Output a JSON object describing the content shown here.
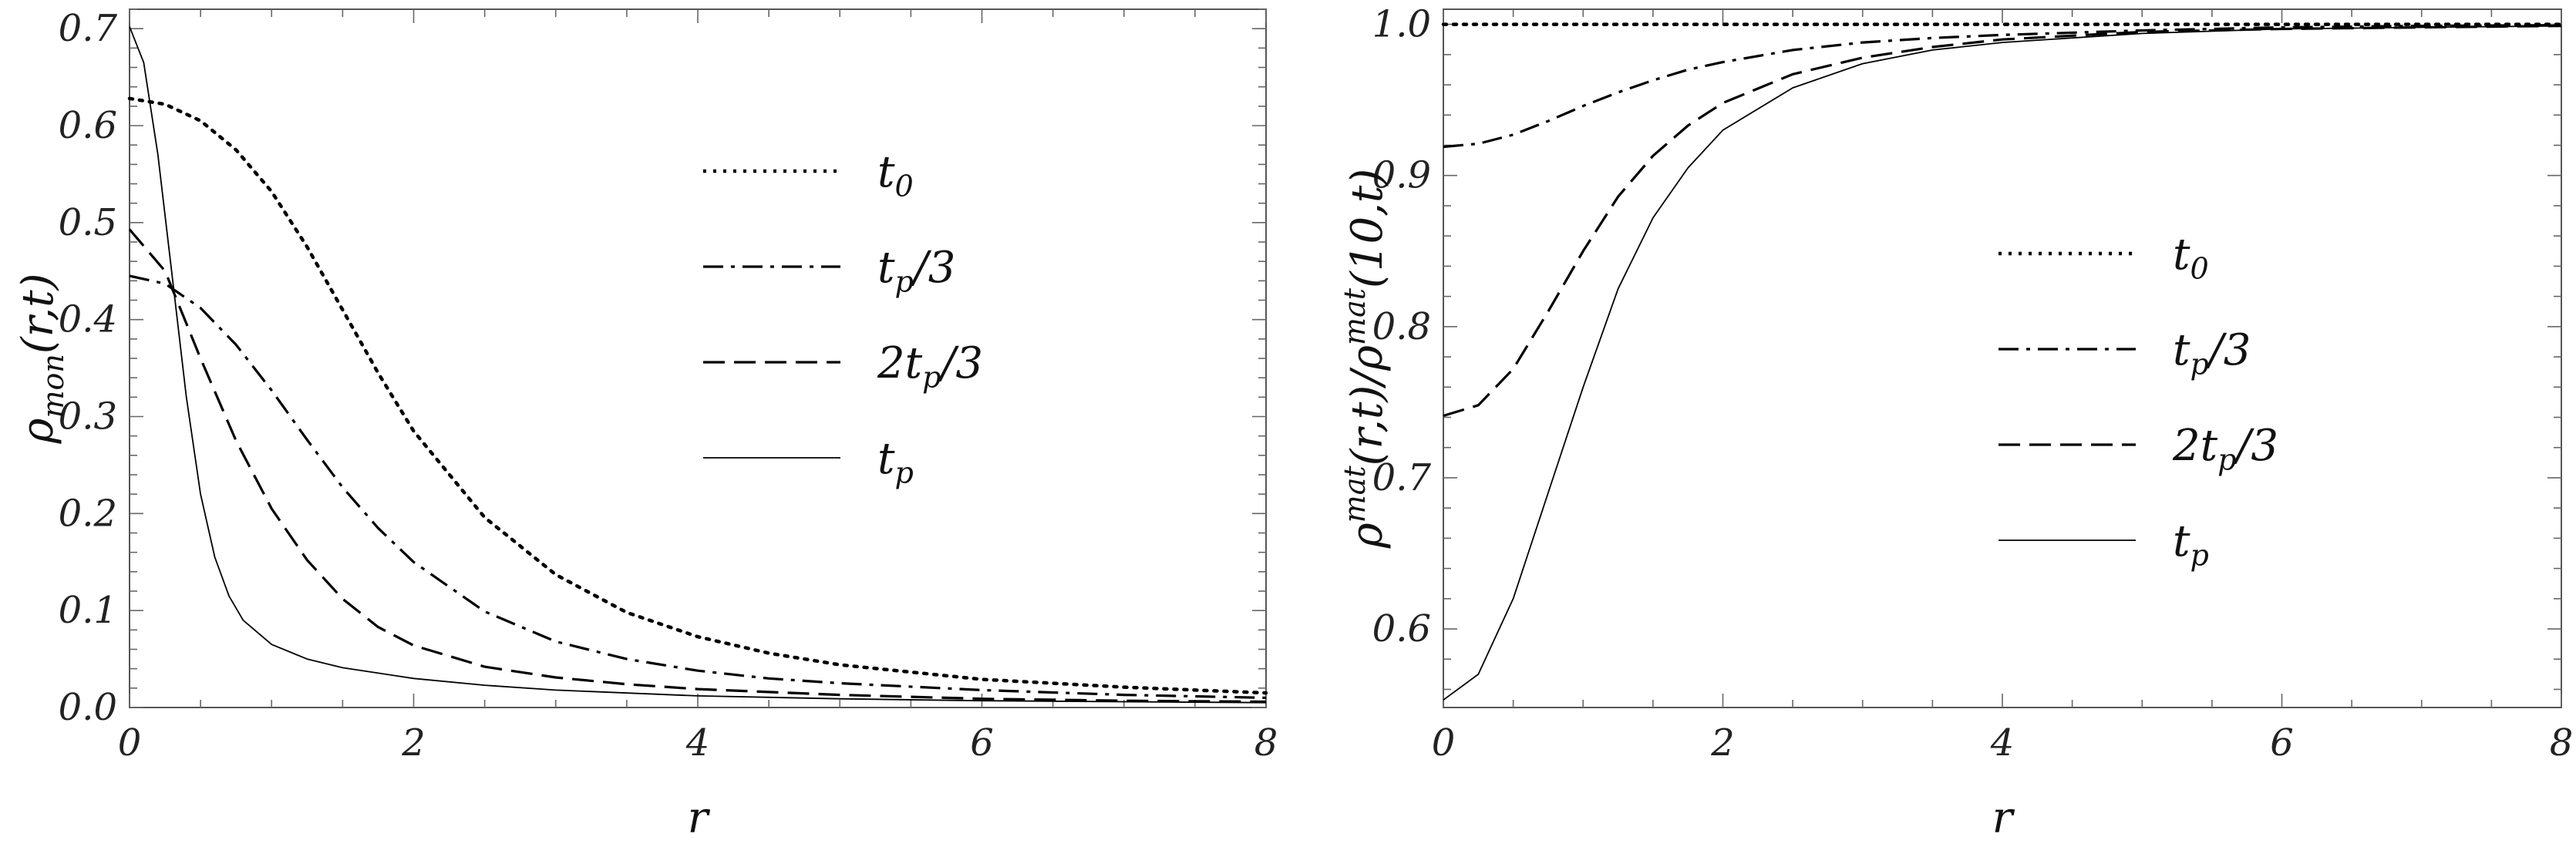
{
  "chart_data": [
    {
      "type": "line",
      "xlabel": "r",
      "ylabel": "ρmon(r,t)",
      "xlim": [
        0,
        8
      ],
      "ylim": [
        0,
        0.72
      ],
      "xticks": [
        "0",
        "2",
        "4",
        "6",
        "8"
      ],
      "yticks": [
        "0.0",
        "0.1",
        "0.2",
        "0.3",
        "0.4",
        "0.5",
        "0.6",
        "0.7"
      ],
      "grid": false,
      "legend_position": "upper-right",
      "series": [
        {
          "name": "t0",
          "style": "dotted",
          "x": [
            0,
            0.25,
            0.5,
            0.75,
            1,
            1.25,
            1.5,
            1.75,
            2,
            2.5,
            3,
            3.5,
            4,
            4.5,
            5,
            6,
            7,
            8
          ],
          "values": [
            0.628,
            0.622,
            0.605,
            0.575,
            0.532,
            0.475,
            0.41,
            0.345,
            0.285,
            0.196,
            0.137,
            0.098,
            0.073,
            0.056,
            0.044,
            0.029,
            0.021,
            0.015
          ]
        },
        {
          "name": "tp/3",
          "style": "dashdot",
          "x": [
            0,
            0.25,
            0.5,
            0.75,
            1,
            1.25,
            1.5,
            1.75,
            2,
            2.5,
            3,
            3.5,
            4,
            4.5,
            5,
            6,
            7,
            8
          ],
          "values": [
            0.445,
            0.437,
            0.412,
            0.374,
            0.327,
            0.276,
            0.227,
            0.185,
            0.15,
            0.099,
            0.068,
            0.05,
            0.038,
            0.03,
            0.025,
            0.018,
            0.013,
            0.01
          ]
        },
        {
          "name": "2tp/3",
          "style": "dashed",
          "x": [
            0,
            0.25,
            0.5,
            0.75,
            1,
            1.25,
            1.5,
            1.75,
            2,
            2.5,
            3,
            3.5,
            4,
            4.5,
            5,
            6,
            7,
            8
          ],
          "values": [
            0.493,
            0.45,
            0.36,
            0.275,
            0.205,
            0.152,
            0.112,
            0.083,
            0.064,
            0.042,
            0.031,
            0.024,
            0.019,
            0.016,
            0.013,
            0.009,
            0.007,
            0.006
          ]
        },
        {
          "name": "tp",
          "style": "solid",
          "x": [
            0,
            0.1,
            0.2,
            0.3,
            0.4,
            0.5,
            0.6,
            0.7,
            0.8,
            1,
            1.25,
            1.5,
            2,
            2.5,
            3,
            4,
            5,
            6,
            7,
            8
          ],
          "values": [
            0.702,
            0.665,
            0.57,
            0.445,
            0.32,
            0.22,
            0.155,
            0.115,
            0.09,
            0.065,
            0.05,
            0.041,
            0.03,
            0.023,
            0.018,
            0.012,
            0.009,
            0.007,
            0.006,
            0.005
          ]
        }
      ]
    },
    {
      "type": "line",
      "xlabel": "r",
      "ylabel": "ρmat(r,t)/ρmat(10,t)",
      "xlim": [
        0,
        8
      ],
      "ylim": [
        0.548,
        1.01
      ],
      "xticks": [
        "0",
        "2",
        "4",
        "6",
        "8"
      ],
      "yticks": [
        "0.6",
        "0.7",
        "0.8",
        "0.9",
        "1.0"
      ],
      "grid": false,
      "legend_position": "center-right",
      "series": [
        {
          "name": "t0",
          "style": "dotted",
          "x": [
            0,
            8
          ],
          "values": [
            1.0,
            1.0
          ]
        },
        {
          "name": "tp/3",
          "style": "dashdot",
          "x": [
            0,
            0.25,
            0.5,
            0.75,
            1,
            1.25,
            1.5,
            1.75,
            2,
            2.5,
            3,
            3.5,
            4,
            5,
            6,
            7,
            8
          ],
          "values": [
            0.919,
            0.921,
            0.927,
            0.936,
            0.946,
            0.955,
            0.963,
            0.97,
            0.975,
            0.983,
            0.988,
            0.991,
            0.993,
            0.996,
            0.998,
            0.999,
            0.9995
          ]
        },
        {
          "name": "2tp/3",
          "style": "dashed",
          "x": [
            0,
            0.25,
            0.5,
            0.75,
            1,
            1.25,
            1.5,
            1.75,
            2,
            2.5,
            3,
            3.5,
            4,
            5,
            6,
            7,
            8
          ],
          "values": [
            0.741,
            0.748,
            0.772,
            0.81,
            0.85,
            0.886,
            0.913,
            0.933,
            0.948,
            0.967,
            0.978,
            0.985,
            0.99,
            0.995,
            0.997,
            0.998,
            0.999
          ]
        },
        {
          "name": "tp",
          "style": "solid",
          "x": [
            0,
            0.25,
            0.5,
            0.75,
            1,
            1.25,
            1.5,
            1.75,
            2,
            2.5,
            3,
            3.5,
            4,
            5,
            6,
            7,
            8
          ],
          "values": [
            0.553,
            0.57,
            0.62,
            0.69,
            0.76,
            0.825,
            0.872,
            0.905,
            0.93,
            0.958,
            0.974,
            0.983,
            0.988,
            0.994,
            0.997,
            0.998,
            0.999
          ]
        }
      ]
    }
  ]
}
